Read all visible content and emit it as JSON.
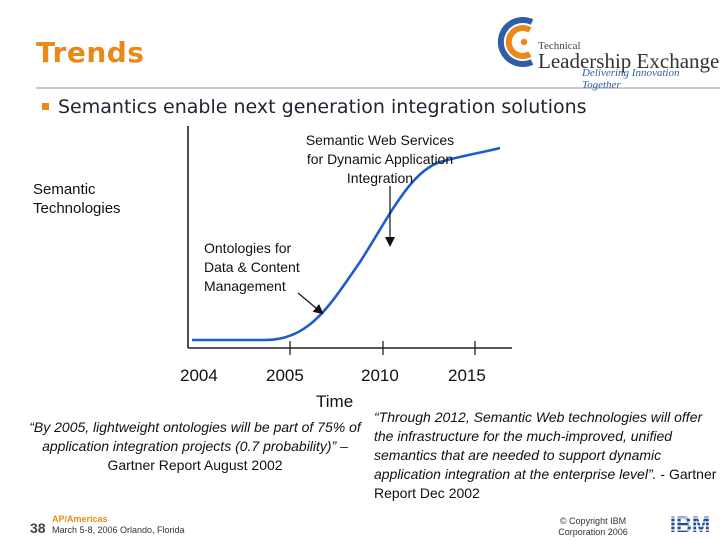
{
  "slide": {
    "title": "Trends",
    "bullet": "Semantics enable next generation integration solutions",
    "number": "38"
  },
  "logo": {
    "small": "Technical",
    "main": "Leadership Exchange",
    "tagline": "Delivering Innovation Together"
  },
  "diagram": {
    "y_label_line1": "Semantic",
    "y_label_line2": "Technologies",
    "x_label": "Time",
    "ticks": [
      "2004",
      "2005",
      "2010",
      "2015"
    ],
    "annotation_ontologies": [
      "Ontologies for",
      "Data & Content",
      "Management"
    ],
    "annotation_services": [
      "Semantic Web Services",
      "for Dynamic Application",
      "Integration"
    ]
  },
  "quotes": {
    "left_text": "“By 2005, lightweight ontologies will be part of 75% of application integration projects (0.7 probability)” –",
    "left_source": "Gartner Report August 2002",
    "right_text": "“Through 2012, Semantic Web technologies will offer the infrastructure for the much-improved, unified semantics that are needed to support dynamic application integration at the enterprise level”.",
    "right_source": "- Gartner Report Dec 2002"
  },
  "footer": {
    "region": "AP/Americas",
    "date": "March 5-8, 2006 Orlando, Florida",
    "copyright": "© Copyright IBM Corporation 2006",
    "brand": "IBM"
  },
  "colors": {
    "accent": "#e8891a",
    "logo_blue": "#2f5da8",
    "ibm_blue": "#1f4a9a"
  }
}
